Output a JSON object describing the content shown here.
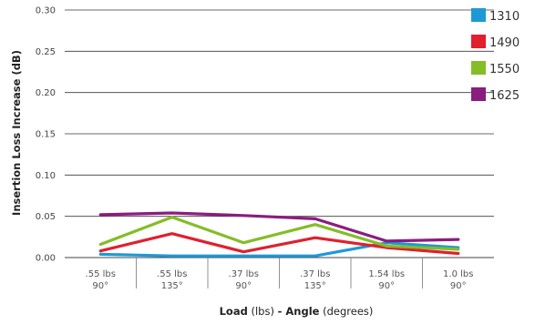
{
  "chart_data": {
    "type": "line",
    "ylabel": "Insertion Loss Increase (dB)",
    "xlabel": {
      "part1_bold": "Load",
      "part2": " (lbs) ",
      "part3_bold": "- Angle",
      "part4": " (degrees)"
    },
    "ylim": [
      0,
      0.3
    ],
    "yticks": [
      "0.00",
      "0.05",
      "0.10",
      "0.15",
      "0.20",
      "0.25",
      "0.30"
    ],
    "categories": [
      [
        ".55 lbs",
        "90°"
      ],
      [
        ".55 lbs",
        "135°"
      ],
      [
        ".37 lbs",
        "90°"
      ],
      [
        ".37 lbs",
        "135°"
      ],
      [
        "1.54 lbs",
        "90°"
      ],
      [
        "1.0 lbs",
        "90°"
      ]
    ],
    "grid": true,
    "legend_position": "right",
    "series": [
      {
        "name": "1310",
        "color": "#1c9ad6",
        "values": [
          0.004,
          0.002,
          0.002,
          0.002,
          0.018,
          0.012
        ]
      },
      {
        "name": "1490",
        "color": "#e0202e",
        "values": [
          0.008,
          0.029,
          0.007,
          0.024,
          0.012,
          0.005
        ]
      },
      {
        "name": "1550",
        "color": "#84bd27",
        "values": [
          0.016,
          0.049,
          0.018,
          0.04,
          0.014,
          0.01
        ]
      },
      {
        "name": "1625",
        "color": "#8b1d7f",
        "values": [
          0.052,
          0.054,
          0.051,
          0.047,
          0.02,
          0.022
        ]
      }
    ]
  }
}
